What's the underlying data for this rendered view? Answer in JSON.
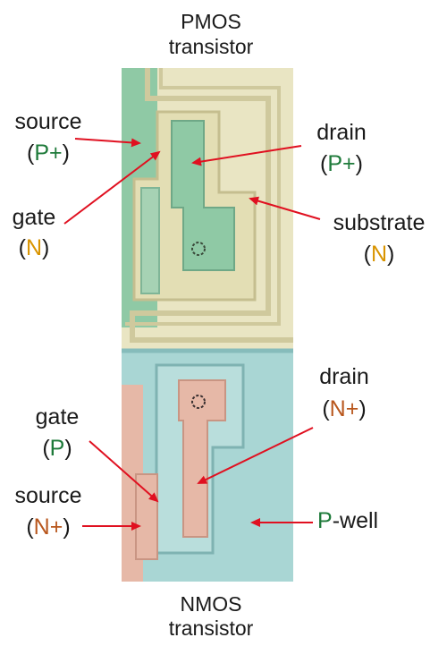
{
  "colors": {
    "green_text": "#1e7a3a",
    "orange_text": "#d99400",
    "brown_text": "#b8561c",
    "arrow": "#e01020",
    "pmos_substrate": "#e9e5c3",
    "pmos_edge": "#cfc99d",
    "pmos_green": "#8fc9a5",
    "nmos_well": "#a9d6d4",
    "nmos_edge": "#86bcbb",
    "nmos_pink": "#e6b8a7"
  },
  "titles": {
    "top_line1": "PMOS",
    "top_line2": "transistor",
    "bottom_line1": "NMOS",
    "bottom_line2": "transistor"
  },
  "labels": {
    "pmos_source": {
      "word": "source",
      "open": "(",
      "type": "P+",
      "close": ")"
    },
    "pmos_gate": {
      "word": "gate",
      "open": "(",
      "type": "N",
      "close": ")"
    },
    "pmos_drain": {
      "word": "drain",
      "open": "(",
      "type": "P+",
      "close": ")"
    },
    "pmos_substrate": {
      "word": "substrate",
      "open": "(",
      "type": "N",
      "close": ")"
    },
    "nmos_drain": {
      "word": "drain",
      "open": "(",
      "type": "N+",
      "close": ")"
    },
    "nmos_gate": {
      "word": "gate",
      "open": "(",
      "type": "P",
      "close": ")"
    },
    "nmos_source": {
      "word": "source",
      "open": "(",
      "type": "N+",
      "close": ")"
    },
    "nmos_well": {
      "type": "P",
      "word": "-well"
    }
  }
}
